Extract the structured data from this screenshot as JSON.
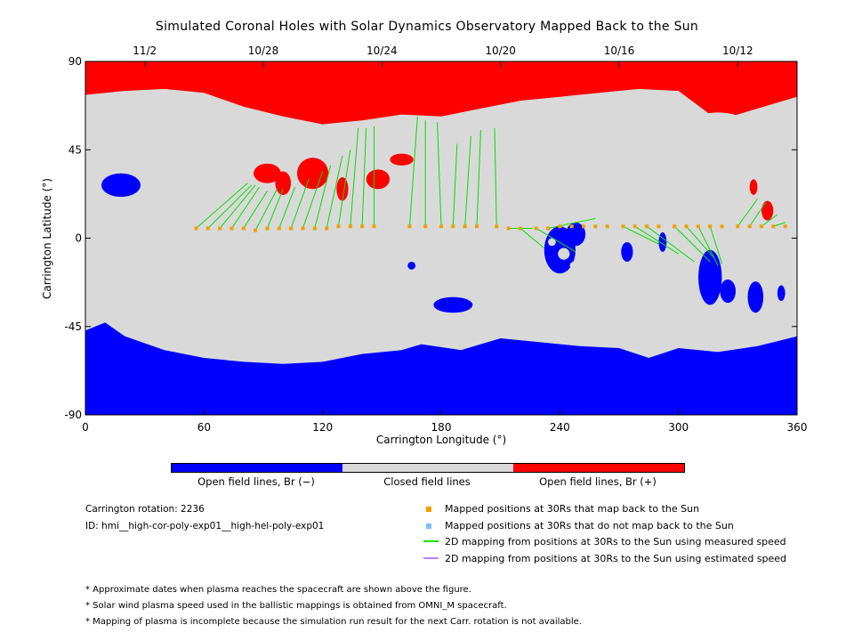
{
  "title": "Simulated Coronal Holes with Solar Dynamics Observatory Mapped Back to the Sun",
  "chart_data": {
    "type": "heatmap",
    "xlabel": "Carrington Longitude (°)",
    "ylabel": "Carrington Latitude (°)",
    "xlim": [
      0,
      360
    ],
    "ylim": [
      -90,
      90
    ],
    "x_ticks": [
      0,
      60,
      120,
      180,
      240,
      300,
      360
    ],
    "y_ticks": [
      90,
      45,
      0,
      -45,
      -90
    ],
    "top_axis_dates": [
      {
        "label": "11/2",
        "lon": 30
      },
      {
        "label": "10/28",
        "lon": 90
      },
      {
        "label": "10/24",
        "lon": 150
      },
      {
        "label": "10/20",
        "lon": 210
      },
      {
        "label": "10/16",
        "lon": 270
      },
      {
        "label": "10/12",
        "lon": 330
      }
    ],
    "colors": {
      "open_negative": "#0000ff",
      "closed": "#d9d9d9",
      "open_positive": "#ff0000",
      "mapped_back": "#f0a000",
      "not_mapped": "#7fbfff",
      "measured_speed": "#00e000",
      "estimated_speed": "#c080ff"
    },
    "colorbar": [
      {
        "label": "Open field lines, Br (−)",
        "color": "#0000ff"
      },
      {
        "label": "Closed field lines",
        "color": "#d9d9d9"
      },
      {
        "label": "Open field lines, Br (+)",
        "color": "#ff0000"
      }
    ],
    "north_cap_boundary": [
      [
        0,
        73
      ],
      [
        20,
        75
      ],
      [
        40,
        76
      ],
      [
        60,
        74
      ],
      [
        80,
        67
      ],
      [
        100,
        62
      ],
      [
        120,
        58
      ],
      [
        140,
        60
      ],
      [
        160,
        63
      ],
      [
        180,
        62
      ],
      [
        200,
        66
      ],
      [
        220,
        70
      ],
      [
        240,
        72
      ],
      [
        260,
        74
      ],
      [
        280,
        76
      ],
      [
        300,
        75
      ],
      [
        320,
        60
      ],
      [
        340,
        66
      ],
      [
        360,
        72
      ]
    ],
    "south_cap_boundary": [
      [
        0,
        -47
      ],
      [
        10,
        -43
      ],
      [
        20,
        -50
      ],
      [
        40,
        -57
      ],
      [
        60,
        -61
      ],
      [
        80,
        -63
      ],
      [
        100,
        -64
      ],
      [
        120,
        -63
      ],
      [
        140,
        -59
      ],
      [
        160,
        -57
      ],
      [
        170,
        -54
      ],
      [
        190,
        -57
      ],
      [
        210,
        -51
      ],
      [
        230,
        -53
      ],
      [
        250,
        -55
      ],
      [
        270,
        -56
      ],
      [
        285,
        -61
      ],
      [
        300,
        -56
      ],
      [
        320,
        -58
      ],
      [
        340,
        -55
      ],
      [
        360,
        -50
      ]
    ],
    "mapped_points": [
      {
        "lon": 56,
        "lat": 5
      },
      {
        "lon": 62,
        "lat": 5
      },
      {
        "lon": 68,
        "lat": 5
      },
      {
        "lon": 74,
        "lat": 5
      },
      {
        "lon": 80,
        "lat": 5
      },
      {
        "lon": 86,
        "lat": 4
      },
      {
        "lon": 92,
        "lat": 5
      },
      {
        "lon": 98,
        "lat": 5
      },
      {
        "lon": 104,
        "lat": 5
      },
      {
        "lon": 110,
        "lat": 5
      },
      {
        "lon": 116,
        "lat": 5
      },
      {
        "lon": 122,
        "lat": 5
      },
      {
        "lon": 128,
        "lat": 6
      },
      {
        "lon": 134,
        "lat": 6
      },
      {
        "lon": 140,
        "lat": 6
      },
      {
        "lon": 146,
        "lat": 6
      },
      {
        "lon": 164,
        "lat": 6
      },
      {
        "lon": 172,
        "lat": 6
      },
      {
        "lon": 180,
        "lat": 6
      },
      {
        "lon": 186,
        "lat": 6
      },
      {
        "lon": 192,
        "lat": 6
      },
      {
        "lon": 198,
        "lat": 6
      },
      {
        "lon": 208,
        "lat": 6
      },
      {
        "lon": 214,
        "lat": 5
      },
      {
        "lon": 220,
        "lat": 5
      },
      {
        "lon": 228,
        "lat": 5
      },
      {
        "lon": 234,
        "lat": 5
      },
      {
        "lon": 240,
        "lat": 6
      },
      {
        "lon": 246,
        "lat": 6
      },
      {
        "lon": 252,
        "lat": 6
      },
      {
        "lon": 258,
        "lat": 6
      },
      {
        "lon": 264,
        "lat": 6
      },
      {
        "lon": 272,
        "lat": 6
      },
      {
        "lon": 278,
        "lat": 6
      },
      {
        "lon": 284,
        "lat": 6
      },
      {
        "lon": 290,
        "lat": 6
      },
      {
        "lon": 298,
        "lat": 6
      },
      {
        "lon": 304,
        "lat": 6
      },
      {
        "lon": 310,
        "lat": 6
      },
      {
        "lon": 316,
        "lat": 6
      },
      {
        "lon": 322,
        "lat": 6
      },
      {
        "lon": 330,
        "lat": 6
      },
      {
        "lon": 336,
        "lat": 6
      },
      {
        "lon": 342,
        "lat": 6
      },
      {
        "lon": 348,
        "lat": 6
      },
      {
        "lon": 354,
        "lat": 6
      }
    ],
    "mapping_lines": [
      {
        "from": [
          56,
          5
        ],
        "to": [
          82,
          28
        ]
      },
      {
        "from": [
          62,
          5
        ],
        "to": [
          84,
          27
        ]
      },
      {
        "from": [
          68,
          5
        ],
        "to": [
          86,
          27
        ]
      },
      {
        "from": [
          74,
          5
        ],
        "to": [
          88,
          26
        ]
      },
      {
        "from": [
          80,
          5
        ],
        "to": [
          92,
          24
        ]
      },
      {
        "from": [
          86,
          4
        ],
        "to": [
          97,
          25
        ]
      },
      {
        "from": [
          92,
          5
        ],
        "to": [
          100,
          25
        ]
      },
      {
        "from": [
          98,
          5
        ],
        "to": [
          106,
          26
        ]
      },
      {
        "from": [
          104,
          5
        ],
        "to": [
          113,
          30
        ]
      },
      {
        "from": [
          110,
          5
        ],
        "to": [
          120,
          34
        ]
      },
      {
        "from": [
          116,
          5
        ],
        "to": [
          124,
          37
        ]
      },
      {
        "from": [
          122,
          5
        ],
        "to": [
          130,
          42
        ]
      },
      {
        "from": [
          128,
          6
        ],
        "to": [
          134,
          45
        ]
      },
      {
        "from": [
          134,
          6
        ],
        "to": [
          138,
          56
        ]
      },
      {
        "from": [
          140,
          6
        ],
        "to": [
          142,
          56
        ]
      },
      {
        "from": [
          146,
          6
        ],
        "to": [
          146,
          57
        ]
      },
      {
        "from": [
          164,
          6
        ],
        "to": [
          168,
          62
        ]
      },
      {
        "from": [
          172,
          6
        ],
        "to": [
          172,
          60
        ]
      },
      {
        "from": [
          180,
          6
        ],
        "to": [
          178,
          59
        ]
      },
      {
        "from": [
          186,
          6
        ],
        "to": [
          188,
          48
        ]
      },
      {
        "from": [
          192,
          6
        ],
        "to": [
          195,
          52
        ]
      },
      {
        "from": [
          198,
          6
        ],
        "to": [
          200,
          55
        ]
      },
      {
        "from": [
          208,
          6
        ],
        "to": [
          207,
          56
        ]
      },
      {
        "from": [
          214,
          5
        ],
        "to": [
          226,
          5
        ]
      },
      {
        "from": [
          220,
          5
        ],
        "to": [
          232,
          -5
        ]
      },
      {
        "from": [
          228,
          5
        ],
        "to": [
          248,
          -7
        ]
      },
      {
        "from": [
          234,
          5
        ],
        "to": [
          258,
          10
        ]
      },
      {
        "from": [
          272,
          6
        ],
        "to": [
          290,
          -3
        ]
      },
      {
        "from": [
          278,
          6
        ],
        "to": [
          300,
          -8
        ]
      },
      {
        "from": [
          284,
          6
        ],
        "to": [
          308,
          -12
        ]
      },
      {
        "from": [
          298,
          6
        ],
        "to": [
          316,
          -12
        ]
      },
      {
        "from": [
          304,
          6
        ],
        "to": [
          318,
          -10
        ]
      },
      {
        "from": [
          310,
          6
        ],
        "to": [
          320,
          -14
        ]
      },
      {
        "from": [
          316,
          6
        ],
        "to": [
          322,
          -13
        ]
      },
      {
        "from": [
          330,
          6
        ],
        "to": [
          340,
          20
        ]
      },
      {
        "from": [
          336,
          6
        ],
        "to": [
          344,
          18
        ]
      },
      {
        "from": [
          342,
          6
        ],
        "to": [
          350,
          12
        ]
      },
      {
        "from": [
          348,
          6
        ],
        "to": [
          354,
          8
        ]
      }
    ]
  },
  "colorbar_labels": {
    "neg": "Open field lines, Br (−)",
    "closed": "Closed field lines",
    "pos": "Open field lines, Br (+)"
  },
  "info": {
    "rotation": "Carrington rotation: 2236",
    "id": "ID: hmi__high-cor-poly-exp01__high-hel-poly-exp01"
  },
  "legend": {
    "mapped_back": "Mapped positions at 30Rs that map back to the Sun",
    "not_mapped": "Mapped positions at 30Rs that do not map back to the Sun",
    "measured": "2D mapping from positions at 30Rs to the Sun using measured speed",
    "estimated": "2D mapping from positions at 30Rs to the Sun using estimated speed"
  },
  "notes": {
    "n1": "* Approximate dates when plasma reaches the spacecraft are shown above the figure.",
    "n2": "* Solar wind plasma speed used in the ballistic mappings is obtained from OMNI_M spacecraft.",
    "n3": "* Mapping of plasma is incomplete because the simulation run result for the next Carr. rotation is not available."
  }
}
